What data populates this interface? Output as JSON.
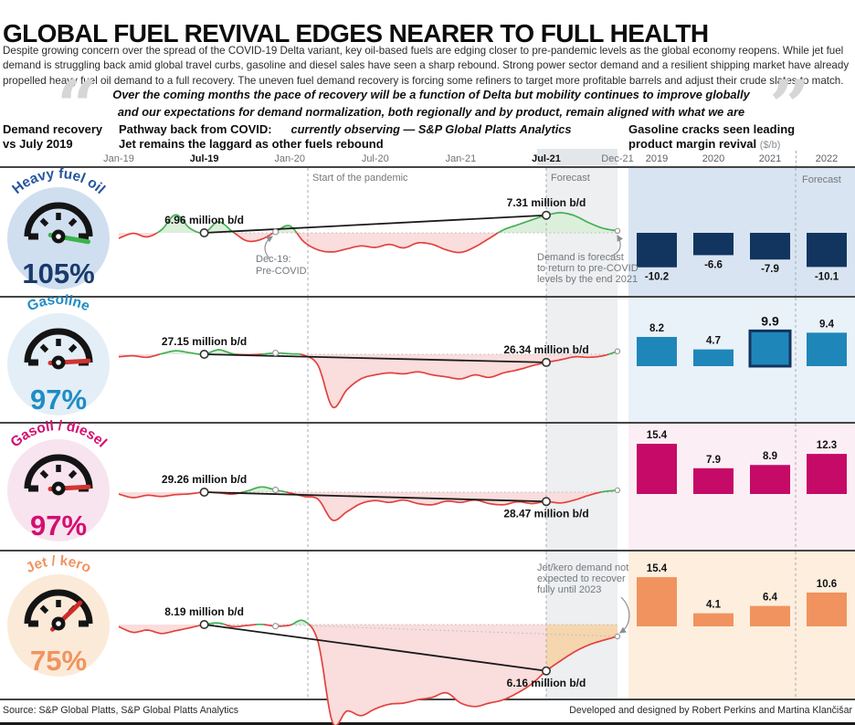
{
  "header": {
    "title": "GLOBAL FUEL REVIVAL EDGES NEARER TO FULL HEALTH",
    "intro": "Despite growing concern over the spread of the COVID-19 Delta variant, key oil-based fuels are edging closer to pre-pandemic levels as the global economy reopens. While jet fuel demand is struggling back amid global travel curbs, gasoline and diesel sales have seen a sharp rebound. Strong power sector demand and a resilient shipping market have already propelled heavy fuel oil demand to a full recovery. The uneven fuel demand recovery is forcing some refiners to target more profitable barrels and adjust their crude slates to match."
  },
  "quote": {
    "open_mark": "“",
    "close_mark": "”",
    "text": "Over the coming months the pace of recovery will be a function of Delta but mobility continues to improve globally and our expectations for demand normalization, both regionally and by product, remain aligned with what we are currently observing",
    "attribution": "— S&P Global Platts Analytics"
  },
  "columns": {
    "left_header_line1": "Demand recovery",
    "left_header_line2": "vs July 2019",
    "middle_header_line1": "Pathway back from COVID:",
    "middle_header_line2": "Jet remains the laggard as other fuels rebound",
    "right_header_line1": "Gasoline cracks seen leading",
    "right_header_line2": "product margin revival",
    "right_header_unit": "($/b)"
  },
  "timeline": {
    "ticks": [
      {
        "label": "Jan-19",
        "month": 0,
        "bold": false
      },
      {
        "label": "Jul-19",
        "month": 6,
        "bold": true
      },
      {
        "label": "Jan-20",
        "month": 12,
        "bold": false
      },
      {
        "label": "Jul-20",
        "month": 18,
        "bold": false
      },
      {
        "label": "Jan-21",
        "month": 24,
        "bold": false
      },
      {
        "label": "Jul-21",
        "month": 30,
        "bold": true
      },
      {
        "label": "Dec-21",
        "month": 35,
        "bold": false
      }
    ]
  },
  "years": [
    "2019",
    "2020",
    "2021",
    "2022"
  ],
  "annotations": {
    "start_pandemic": "Start of the pandemic",
    "forecast": "Forecast",
    "dec19": [
      "Dec-19:",
      "Pre-COVID"
    ],
    "demand_note": [
      "Demand is forecast",
      "to return to pre-COVID",
      "levels by the end 2021"
    ],
    "jet_note": [
      "Jet/kero demand not",
      "expected to recover",
      "fully until 2023"
    ]
  },
  "footer": {
    "source": "Source: S&P Global Platts, S&P Global Platts Analytics",
    "credits": "Developed and designed by Robert Perkins and Martina Klančišar"
  },
  "chart_data": [
    {
      "fuel": "Heavy fuel oil",
      "gauge": {
        "label": "Heavy fuel oil",
        "percent": "105%",
        "needle_deg": -10,
        "needle_color": "#3cb44a",
        "label_color": "#27569e",
        "percent_color": "#1a3a6b",
        "circle_bg": "#cfdff0"
      },
      "line": {
        "type": "area-line",
        "x_start": "Jan-19",
        "x_end": "Dec-21",
        "interval": "monthly",
        "baseline_value": 6.96,
        "start_point": {
          "x": "Jul-19",
          "value": 6.96,
          "label": "6.96 million b/d",
          "label_below": false
        },
        "end_point": {
          "x": "Jul-21",
          "value": 7.31,
          "label": "7.31 million b/d",
          "label_below": false
        },
        "values": [
          6.85,
          6.95,
          6.88,
          7.02,
          7.32,
          7.05,
          6.96,
          7.18,
          6.98,
          6.8,
          6.83,
          6.98,
          7.1,
          6.78,
          6.62,
          6.58,
          6.64,
          6.7,
          6.67,
          6.73,
          6.66,
          6.76,
          6.73,
          6.62,
          6.57,
          6.68,
          6.85,
          7.02,
          7.12,
          7.22,
          7.31,
          7.36,
          7.3,
          7.16,
          7.05,
          7.0
        ]
      },
      "bars": {
        "type": "bar",
        "categories": [
          "2019",
          "2020",
          "2021",
          "2022"
        ],
        "values": [
          -10.2,
          -6.6,
          -7.9,
          -10.1
        ],
        "color": "#12355f",
        "panel_bg": "#d8e4f1",
        "direction": "down",
        "highlight_index": null
      }
    },
    {
      "fuel": "Gasoline",
      "gauge": {
        "label": "Gasoline",
        "percent": "97%",
        "needle_deg": 3,
        "needle_color": "#d23430",
        "label_color": "#1f8dc4",
        "percent_color": "#1f8dc4",
        "circle_bg": "#e4eef7"
      },
      "line": {
        "type": "area-line",
        "x_start": "Jan-19",
        "x_end": "Dec-21",
        "interval": "monthly",
        "baseline_value": 27.15,
        "start_point": {
          "x": "Jul-19",
          "value": 27.15,
          "label": "27.15 million b/d",
          "label_below": false
        },
        "end_point": {
          "x": "Jul-21",
          "value": 26.34,
          "label": "26.34 million b/d",
          "label_below": false
        },
        "values": [
          26.9,
          27.0,
          26.85,
          27.2,
          27.5,
          27.3,
          27.15,
          27.6,
          27.2,
          27.1,
          27.15,
          27.28,
          27.2,
          27.05,
          26.0,
          21.9,
          23.6,
          24.7,
          25.1,
          25.3,
          25.2,
          25.4,
          25.1,
          24.9,
          24.7,
          25.1,
          24.85,
          25.3,
          25.6,
          26.0,
          26.34,
          26.6,
          26.9,
          26.85,
          27.0,
          27.45
        ]
      },
      "bars": {
        "type": "bar",
        "categories": [
          "2019",
          "2020",
          "2021",
          "2022"
        ],
        "values": [
          8.2,
          4.7,
          9.9,
          9.4
        ],
        "color": "#1f86ba",
        "panel_bg": "#e9f1f9",
        "direction": "up",
        "highlight_index": 2,
        "highlight_border": "#12355f"
      }
    },
    {
      "fuel": "Gasoil / diesel",
      "gauge": {
        "label": "Gasoil / diesel",
        "percent": "97%",
        "needle_deg": 3,
        "needle_color": "#d23430",
        "label_color": "#d40f71",
        "percent_color": "#d40f71",
        "circle_bg": "#f8e4ef"
      },
      "line": {
        "type": "area-line",
        "x_start": "Jan-19",
        "x_end": "Dec-21",
        "interval": "monthly",
        "baseline_value": 29.26,
        "start_point": {
          "x": "Jul-19",
          "value": 29.26,
          "label": "29.26 million b/d",
          "label_below": false
        },
        "end_point": {
          "x": "Jul-21",
          "value": 28.47,
          "label": "28.47 million b/d",
          "label_below": true
        },
        "values": [
          29.1,
          28.8,
          29.0,
          28.9,
          29.05,
          29.12,
          29.26,
          29.2,
          29.1,
          29.35,
          29.7,
          29.45,
          29.2,
          28.9,
          28.65,
          26.9,
          27.6,
          28.3,
          28.55,
          28.4,
          28.6,
          28.3,
          28.2,
          28.5,
          28.4,
          28.6,
          28.3,
          28.2,
          28.45,
          28.3,
          28.47,
          28.35,
          28.6,
          29.0,
          29.3,
          29.42
        ]
      },
      "bars": {
        "type": "bar",
        "categories": [
          "2019",
          "2020",
          "2021",
          "2022"
        ],
        "values": [
          15.4,
          7.9,
          8.9,
          12.3
        ],
        "color": "#c50a67",
        "panel_bg": "#fceef5",
        "direction": "up",
        "highlight_index": null
      }
    },
    {
      "fuel": "Jet / kero",
      "gauge": {
        "label": "Jet / kero",
        "percent": "75%",
        "needle_deg": 44,
        "needle_color": "#cf2b27",
        "label_color": "#f0945f",
        "percent_color": "#f0945f",
        "circle_bg": "#fcead9"
      },
      "line": {
        "type": "area-line",
        "x_start": "Jan-19",
        "x_end": "Dec-21",
        "interval": "monthly",
        "baseline_value": 8.19,
        "start_point": {
          "x": "Jul-19",
          "value": 8.19,
          "label": "8.19 million b/d",
          "label_below": false
        },
        "end_point": {
          "x": "Jul-21",
          "value": 6.16,
          "label": "6.16 million b/d",
          "label_below": true
        },
        "forecast_fill": "#f5d6ae",
        "values": [
          8.1,
          7.85,
          7.95,
          7.8,
          7.92,
          8.05,
          8.19,
          8.26,
          8.1,
          8.15,
          8.2,
          8.12,
          8.16,
          8.35,
          7.4,
          3.9,
          4.4,
          4.2,
          4.5,
          4.7,
          4.75,
          4.9,
          5.0,
          5.2,
          4.75,
          4.6,
          4.75,
          4.9,
          5.2,
          5.6,
          6.16,
          6.6,
          7.0,
          7.3,
          7.5,
          7.67
        ]
      },
      "bars": {
        "type": "bar",
        "categories": [
          "2019",
          "2020",
          "2021",
          "2022"
        ],
        "values": [
          15.4,
          4.1,
          6.4,
          10.6
        ],
        "color": "#f0935e",
        "panel_bg": "#fdeede",
        "direction": "up",
        "highlight_index": null
      }
    }
  ],
  "style_colors": {
    "above_fill": "#dcefdb",
    "above_stroke": "#44b054",
    "below_fill": "#fadddd",
    "below_stroke": "#e2423e",
    "trend_line": "#1a1a1a",
    "annotation_gray": "#74787c",
    "dashed_gray": "#a7abb0"
  }
}
